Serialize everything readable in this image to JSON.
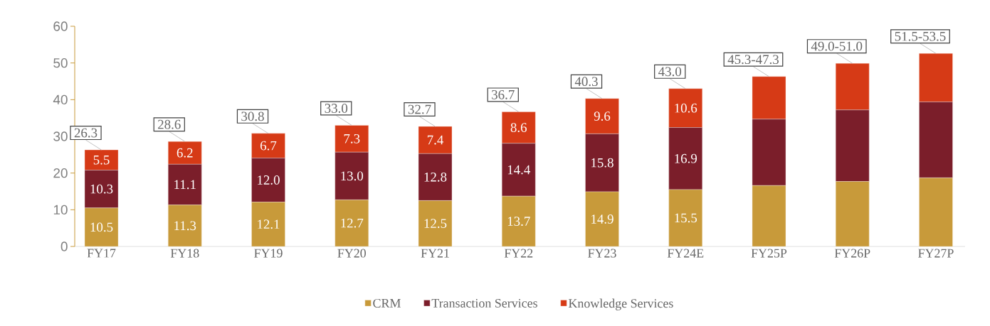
{
  "chart_data": {
    "type": "bar",
    "stacked": true,
    "categories": [
      "FY17",
      "FY18",
      "FY19",
      "FY20",
      "FY21",
      "FY22",
      "FY23",
      "FY24E",
      "FY25P",
      "FY26P",
      "FY27P"
    ],
    "series": [
      {
        "name": "CRM",
        "color": "#c89a3a",
        "values": [
          10.5,
          11.3,
          12.1,
          12.7,
          12.5,
          13.7,
          14.9,
          15.5,
          16.6,
          17.7,
          18.7
        ],
        "value_labels": [
          "10.5",
          "11.3",
          "12.1",
          "12.7",
          "12.5",
          "13.7",
          "14.9",
          "15.5",
          null,
          null,
          null
        ]
      },
      {
        "name": "Transaction Services",
        "color": "#7b1e2a",
        "values": [
          10.3,
          11.1,
          12.0,
          13.0,
          12.8,
          14.4,
          15.8,
          16.9,
          18.1,
          19.5,
          20.7
        ],
        "value_labels": [
          "10.3",
          "11.1",
          "12.0",
          "13.0",
          "12.8",
          "14.4",
          "15.8",
          "16.9",
          null,
          null,
          null
        ]
      },
      {
        "name": "Knowledge Services",
        "color": "#d63a16",
        "values": [
          5.5,
          6.2,
          6.7,
          7.3,
          7.4,
          8.6,
          9.6,
          10.6,
          11.6,
          12.7,
          13.2
        ],
        "value_labels": [
          "5.5",
          "6.2",
          "6.7",
          "7.3",
          "7.4",
          "8.6",
          "9.6",
          "10.6",
          null,
          null,
          null
        ]
      }
    ],
    "totals": [
      "26.3",
      "28.6",
      "30.8",
      "33.0",
      "32.7",
      "36.7",
      "40.3",
      "43.0",
      "45.3-47.3",
      "49.0-51.0",
      "51.5-53.5"
    ],
    "ylim": [
      0,
      60
    ],
    "yticks": [
      0,
      10,
      20,
      30,
      40,
      50,
      60
    ],
    "grid": false,
    "legend": "bottom"
  }
}
